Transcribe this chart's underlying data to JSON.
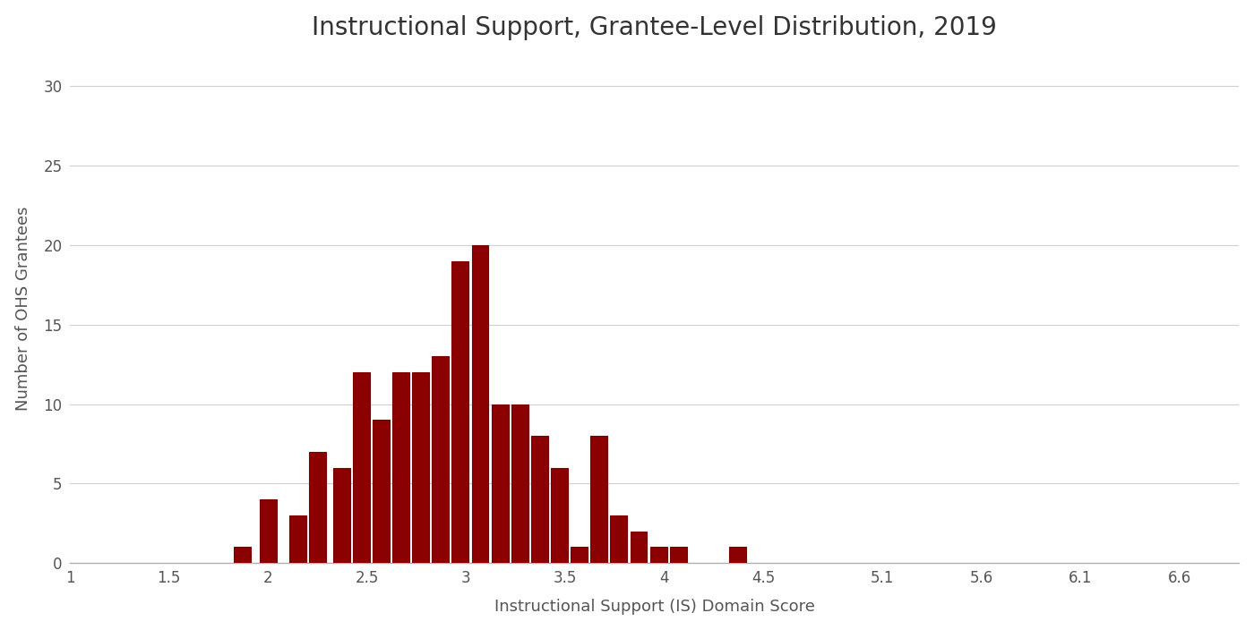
{
  "title": "Instructional Support, Grantee-Level Distribution, 2019",
  "xlabel": "Instructional Support (IS) Domain Score",
  "ylabel": "Number of OHS Grantees",
  "bar_color": "#8B0000",
  "bar_edge_color": "#7a0000",
  "background_color": "#ffffff",
  "xlim": [
    1.0,
    6.9
  ],
  "ylim": [
    0,
    32
  ],
  "xticks": [
    1.0,
    1.5,
    2.0,
    2.5,
    3.0,
    3.5,
    4.0,
    4.5,
    5.1,
    5.6,
    6.1,
    6.6
  ],
  "yticks": [
    0,
    5,
    10,
    15,
    20,
    25,
    30
  ],
  "bar_positions": [
    1.87,
    2.0,
    2.15,
    2.25,
    2.37,
    2.47,
    2.57,
    2.67,
    2.77,
    2.87,
    2.97,
    3.07,
    3.17,
    3.27,
    3.37,
    3.47,
    3.57,
    3.67,
    3.77,
    3.87,
    3.97,
    4.07,
    4.37
  ],
  "bar_heights": [
    1,
    4,
    3,
    7,
    6,
    12,
    9,
    12,
    12,
    13,
    19,
    20,
    10,
    10,
    8,
    6,
    1,
    8,
    3,
    2,
    1,
    1,
    1
  ],
  "bar_width": 0.085,
  "grid_color": "#d0d0d0",
  "title_fontsize": 20,
  "label_fontsize": 13,
  "tick_fontsize": 12,
  "spine_color": "#b0b0b0"
}
